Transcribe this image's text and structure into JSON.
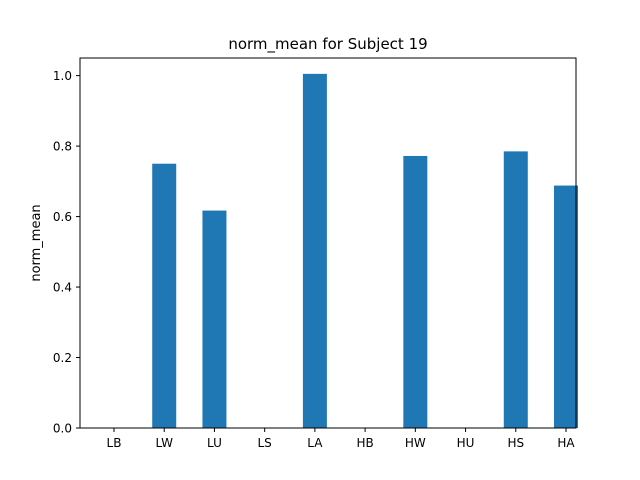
{
  "chart_data": {
    "type": "bar",
    "title": "norm_mean for Subject 19",
    "xlabel": "",
    "ylabel": "norm_mean",
    "categories": [
      "LB",
      "LW",
      "LU",
      "LS",
      "LA",
      "HB",
      "HW",
      "HU",
      "HS",
      "HA"
    ],
    "values": [
      0,
      0.75,
      0.617,
      0,
      1.005,
      0,
      0.772,
      0,
      0.785,
      0.688
    ],
    "ylim": [
      0,
      1.05
    ],
    "yticks": [
      0.0,
      0.2,
      0.4,
      0.6,
      0.8,
      1.0
    ],
    "ytick_labels": [
      "0.0",
      "0.2",
      "0.4",
      "0.6",
      "0.8",
      "1.0"
    ],
    "grid": false,
    "colors": {
      "bar": "#1f77b4"
    }
  }
}
